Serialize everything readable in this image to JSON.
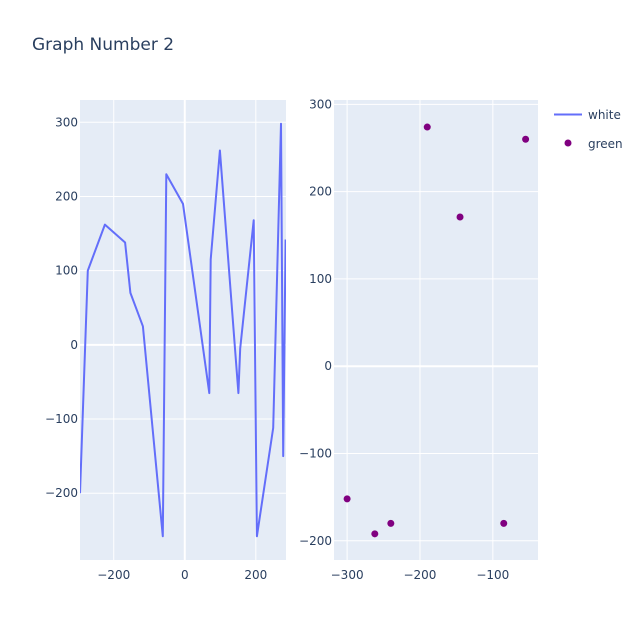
{
  "title": "Graph Number 2",
  "colors": {
    "plot_bg": "#e5ecf6",
    "grid": "#ffffff",
    "line": "#636efa",
    "marker": "#800080",
    "text": "#2a3f5f"
  },
  "chart_data": [
    {
      "type": "line",
      "series": [
        {
          "name": "white",
          "x": [
            -295,
            -273,
            -225,
            -168,
            -153,
            -118,
            -62,
            -52,
            -5,
            69,
            73,
            99,
            151,
            156,
            194,
            203,
            249,
            271,
            277,
            284
          ],
          "y": [
            -200,
            100,
            162,
            138,
            70,
            25,
            -258,
            230,
            190,
            -65,
            115,
            262,
            -65,
            -5,
            168,
            -258,
            -112,
            298,
            -150,
            142
          ]
        }
      ],
      "xlim": [
        -295,
        285
      ],
      "ylim": [
        -290,
        330
      ],
      "xticks": [
        -200,
        0,
        200
      ],
      "yticks": [
        -200,
        -100,
        0,
        100,
        200,
        300
      ],
      "grid": true
    },
    {
      "type": "scatter",
      "series": [
        {
          "name": "green",
          "x": [
            -300,
            -262,
            -240,
            -190,
            -145,
            -85,
            -55
          ],
          "y": [
            -152,
            -192,
            -180,
            274,
            171,
            -180,
            260
          ]
        }
      ],
      "xlim": [
        -318,
        -38
      ],
      "ylim": [
        -222,
        305
      ],
      "xticks": [
        -300,
        -200,
        -100
      ],
      "yticks": [
        -200,
        -100,
        0,
        100,
        200,
        300
      ],
      "grid": true
    }
  ],
  "legend": {
    "placement": "top-right",
    "items": [
      {
        "label": "white",
        "symbol": "line"
      },
      {
        "label": "green",
        "symbol": "marker"
      }
    ]
  }
}
